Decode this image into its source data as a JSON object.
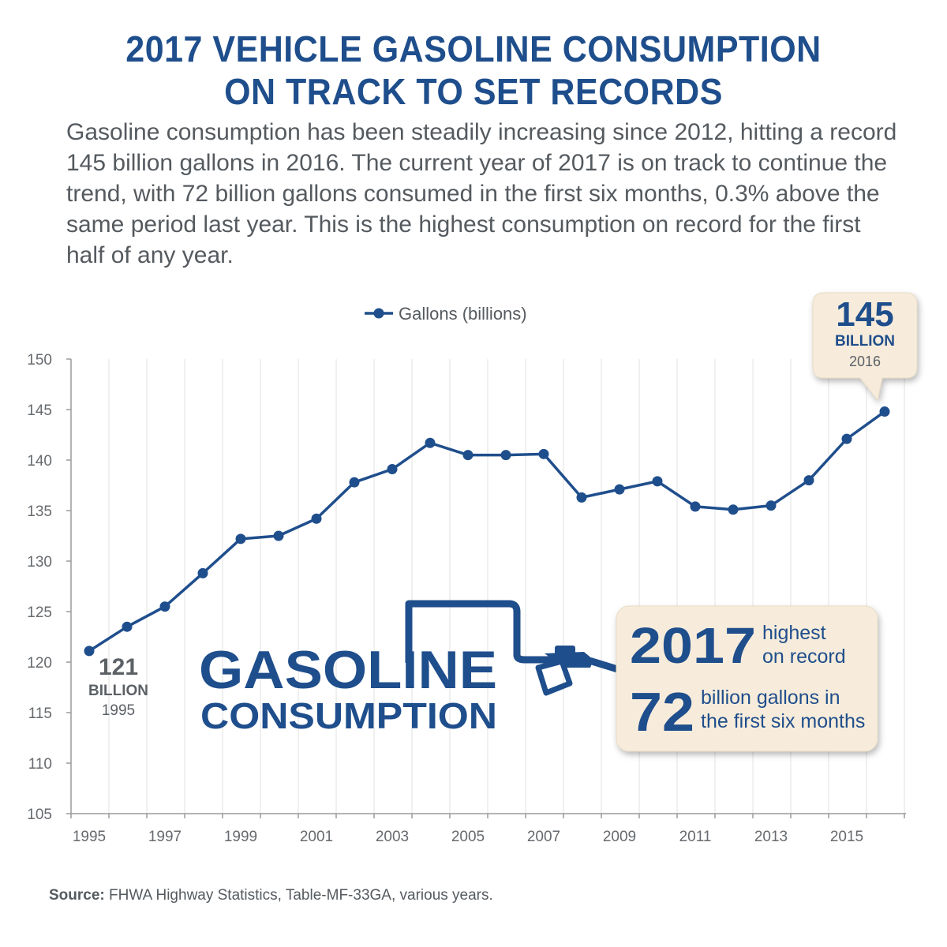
{
  "header": {
    "title_line1": "2017 VEHICLE GASOLINE CONSUMPTION",
    "title_line2": "ON TRACK TO SET RECORDS",
    "intro": "Gasoline consumption has been steadily increasing since 2012, hitting a record 145 billion gallons in 2016. The current year of 2017 is on track to continue the trend, with 72 billion gallons consumed in the first six months, 0.3% above the same period last year. This is the highest consumption on record for the first half of any year."
  },
  "chart_data": {
    "type": "line",
    "legend": "Gallons (billions)",
    "legend_position": "top-center",
    "grid": "vertical",
    "ylim": [
      105,
      150
    ],
    "yticks": [
      105,
      110,
      115,
      120,
      125,
      130,
      135,
      140,
      145,
      150
    ],
    "x": [
      1995,
      1996,
      1997,
      1998,
      1999,
      2000,
      2001,
      2002,
      2003,
      2004,
      2005,
      2006,
      2007,
      2008,
      2009,
      2010,
      2011,
      2012,
      2013,
      2014,
      2015,
      2016
    ],
    "xtick_labels": [
      "1995",
      "1997",
      "1999",
      "2001",
      "2003",
      "2005",
      "2007",
      "2009",
      "2011",
      "2013",
      "2015"
    ],
    "series": [
      {
        "name": "Gallons (billions)",
        "color": "#1f4e8c",
        "values": [
          121.1,
          123.5,
          125.5,
          128.8,
          132.2,
          132.5,
          134.2,
          137.8,
          139.1,
          141.7,
          140.5,
          140.5,
          140.6,
          136.3,
          137.1,
          137.9,
          135.4,
          135.1,
          135.5,
          138.0,
          142.1,
          144.8
        ]
      }
    ],
    "annotations": {
      "start": {
        "value": "121",
        "unit": "BILLION",
        "year": "1995"
      },
      "peak": {
        "value": "145",
        "unit": "BILLION",
        "year": "2016"
      }
    }
  },
  "graphic": {
    "word1": "GASOLINE",
    "word2": "CONSUMPTION"
  },
  "callout": {
    "year": "2017",
    "year_text_1": "highest",
    "year_text_2": "on record",
    "amount": "72",
    "amount_text_1": "billion gallons in",
    "amount_text_2": "the first six months"
  },
  "footer": {
    "source_label": "Source:",
    "source_text": "FHWA Highway Statistics, Table-MF-33GA, various years."
  },
  "colors": {
    "brand_blue": "#1f4e8c",
    "text_gray": "#555a5f",
    "axis_gray": "#9a9a9a",
    "callout_fill": "#f7ecdb"
  }
}
